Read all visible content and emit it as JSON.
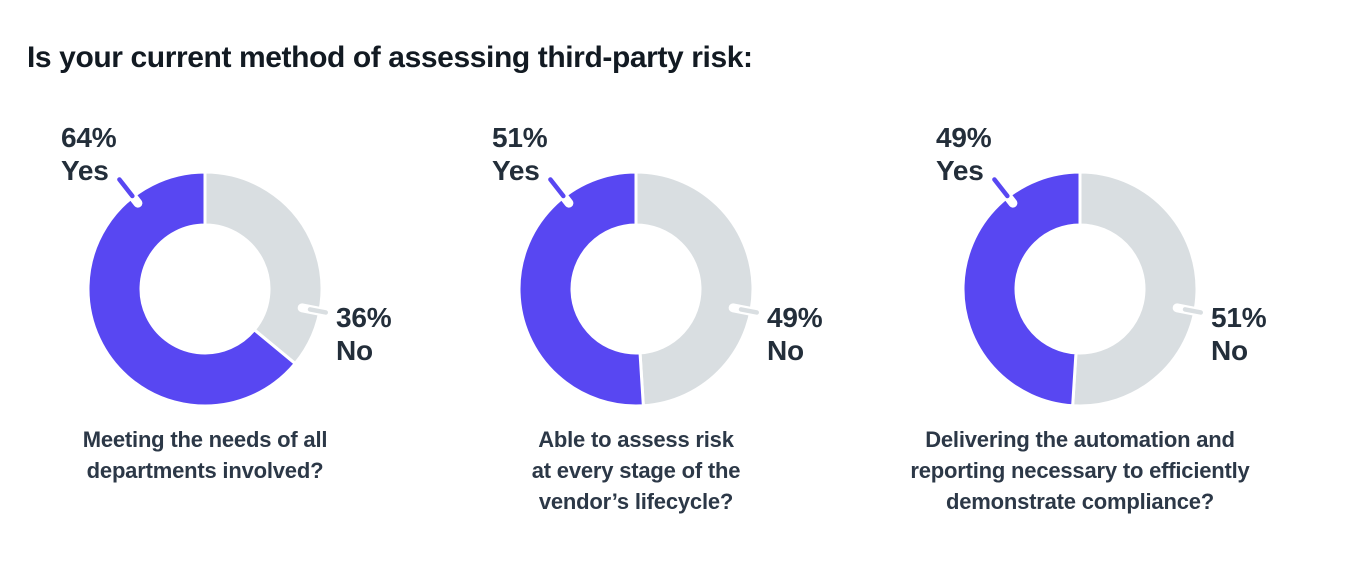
{
  "title": "Is your current method of assessing third-party risk:",
  "colors": {
    "yes": "#5847F2",
    "no": "#D9DEE1",
    "title_text": "#121A22",
    "label_text": "#232E3A",
    "caption_text": "#2C3847",
    "background": "#FFFFFF"
  },
  "chart_data": [
    {
      "type": "pie",
      "style": "donut",
      "slices": [
        {
          "label": "Yes",
          "value": 64,
          "display": "64%",
          "color_key": "yes"
        },
        {
          "label": "No",
          "value": 36,
          "display": "36%",
          "color_key": "no"
        }
      ],
      "caption_lines": [
        "Meeting the needs of all",
        "departments involved?"
      ]
    },
    {
      "type": "pie",
      "style": "donut",
      "slices": [
        {
          "label": "Yes",
          "value": 51,
          "display": "51%",
          "color_key": "yes"
        },
        {
          "label": "No",
          "value": 49,
          "display": "49%",
          "color_key": "no"
        }
      ],
      "caption_lines": [
        "Able to assess risk",
        "at every stage of the",
        "vendor’s lifecycle?"
      ]
    },
    {
      "type": "pie",
      "style": "donut",
      "slices": [
        {
          "label": "Yes",
          "value": 49,
          "display": "49%",
          "color_key": "yes"
        },
        {
          "label": "No",
          "value": 51,
          "display": "51%",
          "color_key": "no"
        }
      ],
      "caption_lines": [
        "Delivering the automation and",
        "reporting necessary to efficiently",
        "demonstrate compliance?"
      ]
    }
  ]
}
